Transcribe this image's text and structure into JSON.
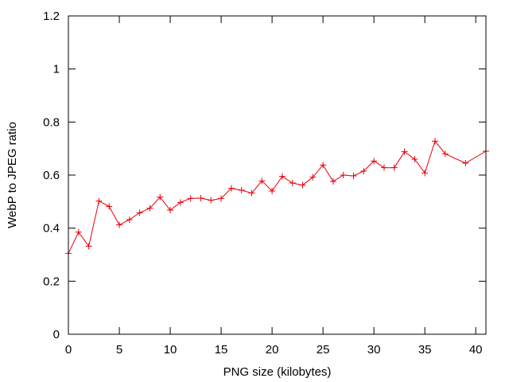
{
  "chart_data": {
    "type": "line",
    "title": "",
    "xlabel": "PNG size (kilobytes)",
    "ylabel": "WebP to JPEG ratio",
    "xlim": [
      0,
      41
    ],
    "ylim": [
      0,
      1.2
    ],
    "x_ticks": [
      0,
      5,
      10,
      15,
      20,
      25,
      30,
      35,
      40
    ],
    "x_tick_labels": [
      "0",
      "5",
      "10",
      "15",
      "20",
      "25",
      "30",
      "35",
      "40"
    ],
    "y_ticks": [
      0,
      0.2,
      0.4,
      0.6,
      0.8,
      1,
      1.2
    ],
    "y_tick_labels": [
      "0",
      "0.2",
      "0.4",
      "0.6",
      "0.8",
      "1",
      "1.2"
    ],
    "grid": false,
    "legend": "none",
    "marker": "plus",
    "series": [
      {
        "color": "#e8000b",
        "points": [
          [
            0,
            0.305
          ],
          [
            1,
            0.385
          ],
          [
            2,
            0.332
          ],
          [
            3,
            0.502
          ],
          [
            4,
            0.482
          ],
          [
            5,
            0.412
          ],
          [
            6,
            0.432
          ],
          [
            7,
            0.458
          ],
          [
            8,
            0.475
          ],
          [
            9,
            0.517
          ],
          [
            10,
            0.468
          ],
          [
            11,
            0.497
          ],
          [
            12,
            0.512
          ],
          [
            13,
            0.513
          ],
          [
            14,
            0.505
          ],
          [
            15,
            0.512
          ],
          [
            16,
            0.55
          ],
          [
            17,
            0.543
          ],
          [
            18,
            0.532
          ],
          [
            19,
            0.578
          ],
          [
            20,
            0.54
          ],
          [
            21,
            0.595
          ],
          [
            22,
            0.57
          ],
          [
            23,
            0.562
          ],
          [
            24,
            0.592
          ],
          [
            25,
            0.638
          ],
          [
            26,
            0.576
          ],
          [
            27,
            0.6
          ],
          [
            28,
            0.597
          ],
          [
            29,
            0.615
          ],
          [
            30,
            0.653
          ],
          [
            31,
            0.628
          ],
          [
            32,
            0.628
          ],
          [
            33,
            0.688
          ],
          [
            34,
            0.66
          ],
          [
            35,
            0.608
          ],
          [
            36,
            0.728
          ],
          [
            37,
            0.68
          ],
          [
            39,
            0.645
          ],
          [
            41,
            0.69
          ]
        ]
      }
    ]
  }
}
